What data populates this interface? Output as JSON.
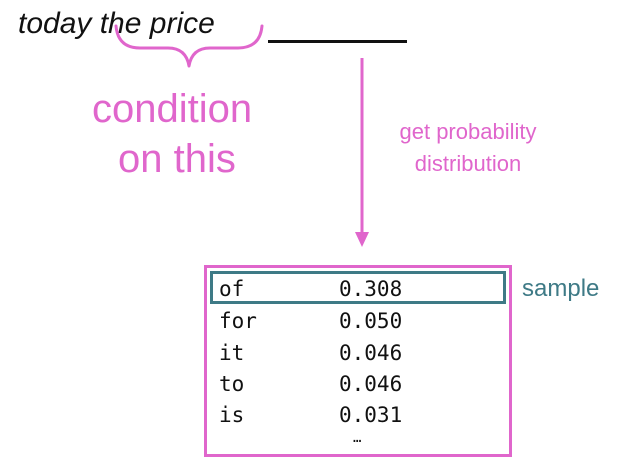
{
  "prompt": {
    "text": "today the price"
  },
  "condition_label": {
    "line1": "condition",
    "line2": "on this"
  },
  "distribution_label": {
    "line1": "get probability",
    "line2": "distribution"
  },
  "distribution": {
    "rows": [
      {
        "word": "of",
        "prob": "0.308"
      },
      {
        "word": "for",
        "prob": "0.050"
      },
      {
        "word": "it",
        "prob": "0.046"
      },
      {
        "word": "to",
        "prob": "0.046"
      },
      {
        "word": "is",
        "prob": "0.031"
      }
    ],
    "ellipsis": "…",
    "highlighted_index": 0
  },
  "sample_label": "sample",
  "colors": {
    "accent": "#e066cc",
    "highlight": "#3e7a86",
    "text": "#111111"
  }
}
